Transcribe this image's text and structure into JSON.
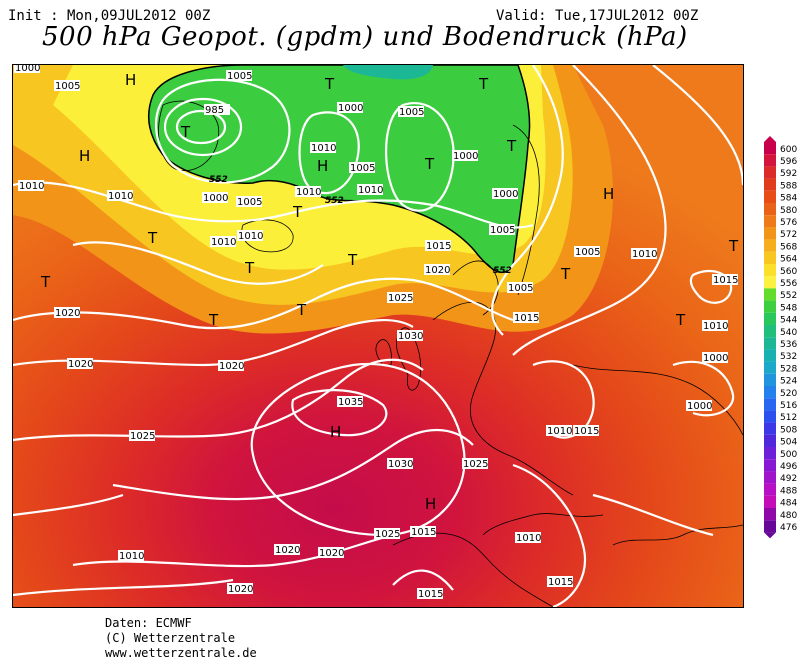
{
  "header": {
    "init": "Init : Mon,09JUL2012 00Z",
    "valid": "Valid: Tue,17JUL2012 00Z",
    "title": "500 hPa Geopot. (gpdm) und Bodendruck (hPa)"
  },
  "footer": {
    "line1": "Daten: ECMWF",
    "line2": "(C) Wetterzentrale",
    "line3": "www.wetterzentrale.de"
  },
  "legend": {
    "values": [
      "600",
      "596",
      "592",
      "588",
      "584",
      "580",
      "576",
      "572",
      "568",
      "564",
      "560",
      "556",
      "552",
      "548",
      "544",
      "540",
      "536",
      "532",
      "528",
      "524",
      "520",
      "516",
      "512",
      "508",
      "504",
      "500",
      "496",
      "492",
      "488",
      "484",
      "480",
      "476"
    ],
    "colors": [
      "#c8004c",
      "#d4143c",
      "#dc2a2a",
      "#e03c1c",
      "#e64e16",
      "#ea6218",
      "#ee7a1a",
      "#f29418",
      "#f6ae1c",
      "#f8c620",
      "#fae02a",
      "#fcf040",
      "#64dc2c",
      "#3cd040",
      "#28c85c",
      "#20c07c",
      "#1cb896",
      "#18b0b0",
      "#1ca8c8",
      "#2094dc",
      "#2480ec",
      "#2868f0",
      "#2c50f0",
      "#3c38e8",
      "#5028dc",
      "#6c20d8",
      "#8818d4",
      "#a014cc",
      "#b810c4",
      "#c40cb8",
      "#9008a8",
      "#680898"
    ]
  },
  "map": {
    "features": [
      "pressure-isobars",
      "500hpa-geopotential-shading",
      "european-coastlines"
    ],
    "pressure_labels": [
      "1000",
      "1005",
      "1005",
      "1010",
      "1010",
      "1005",
      "1000",
      "985",
      "1000",
      "1010",
      "1000",
      "1005",
      "1010",
      "1000",
      "1005",
      "1010",
      "1005",
      "1010",
      "1010",
      "1015",
      "1020",
      "1025",
      "1030",
      "1035",
      "1030",
      "1025",
      "1020",
      "1015",
      "1015",
      "1010",
      "1005",
      "1010",
      "1015",
      "1010",
      "1000",
      "1000",
      "1015",
      "1025",
      "1020",
      "1020",
      "1025",
      "1020",
      "1020",
      "1015",
      "1015",
      "1020",
      "1010",
      "1010",
      "1005"
    ],
    "highs": [
      "H",
      "H",
      "H",
      "H",
      "H",
      "H"
    ],
    "lows": [
      "T",
      "T",
      "T",
      "T",
      "T",
      "T",
      "T",
      "T",
      "T",
      "T",
      "T",
      "T",
      "T",
      "T",
      "T"
    ],
    "geopotential_contour_labels": [
      "552",
      "552",
      "552"
    ]
  }
}
